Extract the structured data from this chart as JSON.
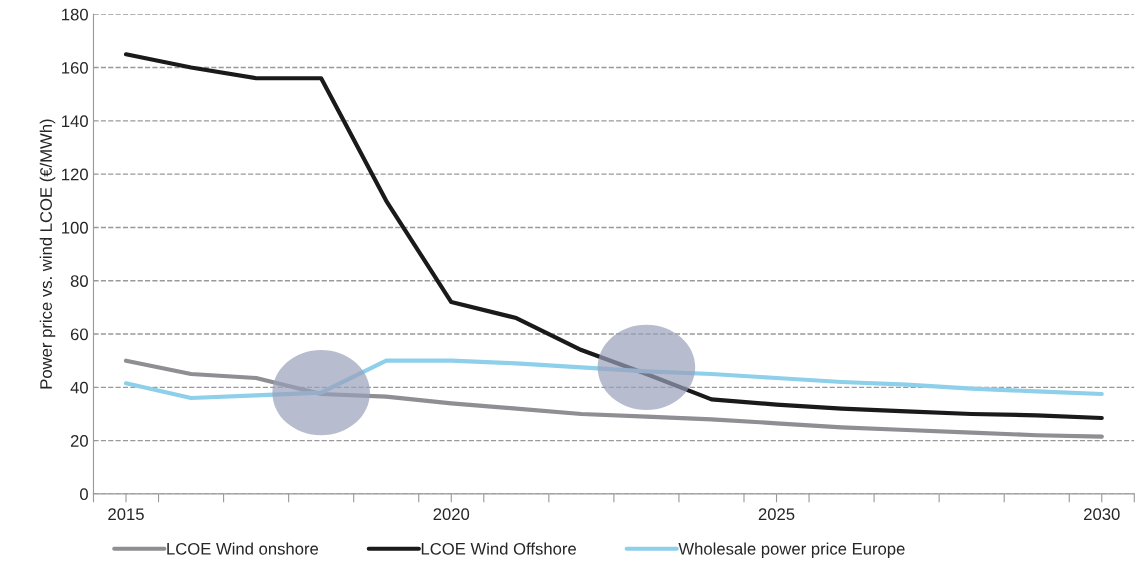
{
  "chart_data": {
    "type": "line",
    "ylabel": "Power price vs. wind LCOE (€/MWh)",
    "x": [
      2015,
      2016,
      2017,
      2018,
      2019,
      2020,
      2021,
      2022,
      2023,
      2024,
      2025,
      2026,
      2027,
      2028,
      2029,
      2030
    ],
    "series": [
      {
        "name": "LCOE Wind onshore",
        "color": "#8e8e93",
        "values": [
          50,
          45,
          43.5,
          37.5,
          36.5,
          34,
          32,
          30,
          29,
          28,
          26.5,
          25,
          24,
          23,
          22,
          21.5
        ]
      },
      {
        "name": "LCOE Wind Offshore",
        "color": "#1a1a1a",
        "values": [
          165,
          160,
          156,
          156,
          110,
          72,
          66,
          54,
          45,
          35.5,
          33.5,
          32,
          31,
          30,
          29.5,
          28.5
        ]
      },
      {
        "name": "Wholesale power price Europe",
        "color": "#8ecfea",
        "values": [
          41.5,
          36,
          37,
          38,
          50,
          50,
          49,
          47.5,
          46,
          45,
          43.5,
          42,
          41,
          39.5,
          38.5,
          37.5
        ]
      }
    ],
    "xlim": [
      2014.5,
      2030.5
    ],
    "xticks": [
      {
        "value": 2014.5,
        "label": null
      },
      {
        "value": 2015,
        "label": "2015"
      },
      {
        "value": 2015.5,
        "label": null
      },
      {
        "value": 2016.5,
        "label": null
      },
      {
        "value": 2017.5,
        "label": null
      },
      {
        "value": 2018.5,
        "label": null
      },
      {
        "value": 2019.5,
        "label": null
      },
      {
        "value": 2020,
        "label": "2020"
      },
      {
        "value": 2020.5,
        "label": null
      },
      {
        "value": 2021.5,
        "label": null
      },
      {
        "value": 2022.5,
        "label": null
      },
      {
        "value": 2023.5,
        "label": null
      },
      {
        "value": 2024.5,
        "label": null
      },
      {
        "value": 2025,
        "label": "2025"
      },
      {
        "value": 2025.5,
        "label": null
      },
      {
        "value": 2026.5,
        "label": null
      },
      {
        "value": 2027.5,
        "label": null
      },
      {
        "value": 2028.5,
        "label": null
      },
      {
        "value": 2029.5,
        "label": null
      },
      {
        "value": 2030,
        "label": "2030"
      },
      {
        "value": 2030.5,
        "label": null
      }
    ],
    "ylim": [
      0,
      180
    ],
    "yticks": [
      0,
      20,
      40,
      60,
      80,
      100,
      120,
      140,
      160,
      180
    ],
    "grid": "y",
    "legend": "bottom",
    "line_style": "solid",
    "marker": "none"
  }
}
